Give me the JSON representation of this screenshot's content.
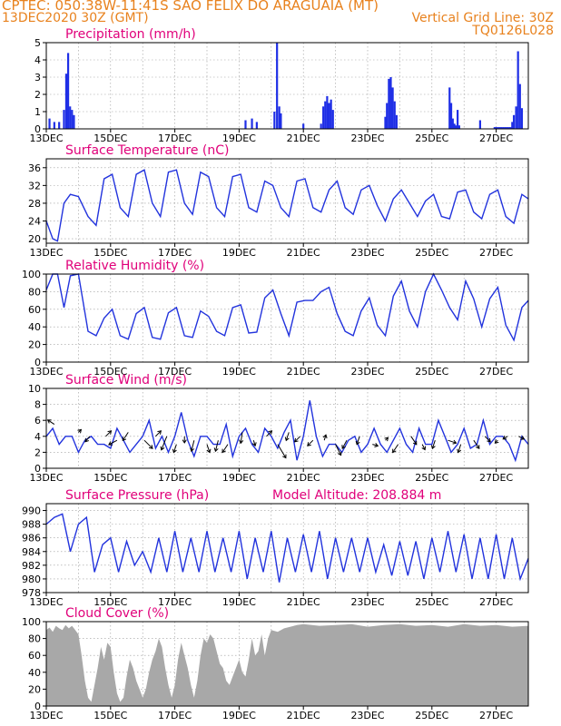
{
  "header": {
    "line1": "CPTEC:  050:38W-11:41S  SAO FELIX DO ARAGUAIA (MT)",
    "line2_left": "13DEC2020 30Z (GMT)",
    "line2_right": "Vertical Grid Line: 30Z",
    "line3_right": "TQ0126L028",
    "model_altitude": "Model Altitude: 208.884 m"
  },
  "colors": {
    "header": "#e8821e",
    "title": "#e0007a",
    "line": "#2233dd",
    "bar": "#1f2fe6",
    "cloud": "#a8a8a8",
    "arrow": "#000000",
    "grid": "#9a9a9a"
  },
  "chart_data": [
    {
      "type": "bar",
      "title": "Precipitation (mm/h)",
      "ylim": [
        0,
        5
      ],
      "yticks": [
        "0",
        "1",
        "2",
        "3",
        "4",
        "5"
      ],
      "xticks": [
        "13DEC",
        "15DEC",
        "17DEC",
        "19DEC",
        "21DEC",
        "23DEC",
        "25DEC",
        "27DEC"
      ],
      "x_unit": "day offset from 13DEC 00Z",
      "x": [
        0.1,
        0.25,
        0.4,
        0.55,
        0.62,
        0.68,
        0.74,
        0.8,
        0.86,
        6.2,
        6.4,
        6.55,
        7.1,
        7.18,
        7.25,
        7.3,
        8.0,
        8.55,
        8.62,
        8.68,
        8.74,
        8.8,
        8.86,
        8.92,
        10.55,
        10.6,
        10.66,
        10.72,
        10.78,
        10.84,
        10.9,
        12.55,
        12.6,
        12.65,
        12.7,
        12.75,
        12.8,
        12.85,
        13.5,
        13.95,
        14.0,
        14.05,
        14.1,
        14.15,
        14.2,
        14.25,
        14.3,
        14.35,
        14.4,
        14.45,
        14.5,
        14.55,
        14.62,
        14.68,
        14.74,
        14.8
      ],
      "values": [
        0.6,
        0.4,
        0.4,
        1.1,
        3.2,
        4.4,
        1.3,
        1.1,
        0.8,
        0.5,
        0.6,
        0.4,
        1.0,
        5.0,
        1.3,
        0.9,
        0.3,
        0.3,
        1.3,
        1.6,
        1.9,
        1.5,
        1.7,
        1.1,
        0.7,
        1.5,
        2.9,
        3.0,
        2.4,
        1.6,
        0.8,
        2.4,
        1.5,
        0.6,
        0.3,
        0.2,
        1.1,
        0.2,
        0.5,
        0.1,
        0.1,
        0.1,
        0.1,
        0.1,
        0.1,
        0.1,
        0.1,
        0.1,
        0.1,
        0.1,
        0.4,
        0.8,
        1.3,
        4.5,
        2.6,
        1.2
      ]
    },
    {
      "type": "line",
      "title": "Surface Temperature (nC)",
      "ylim": [
        19,
        38
      ],
      "yticks": [
        "20",
        "24",
        "28",
        "32",
        "36"
      ],
      "xticks": [
        "13DEC",
        "15DEC",
        "17DEC",
        "19DEC",
        "21DEC",
        "23DEC",
        "25DEC",
        "27DEC"
      ],
      "x_unit": "day offset from 13DEC 00Z",
      "x": [
        0,
        0.2,
        0.35,
        0.55,
        0.75,
        1.0,
        1.3,
        1.55,
        1.8,
        2.05,
        2.3,
        2.55,
        2.8,
        3.05,
        3.3,
        3.55,
        3.8,
        4.05,
        4.3,
        4.55,
        4.8,
        5.05,
        5.3,
        5.55,
        5.8,
        6.05,
        6.3,
        6.55,
        6.8,
        7.05,
        7.3,
        7.55,
        7.8,
        8.05,
        8.3,
        8.55,
        8.8,
        9.05,
        9.3,
        9.55,
        9.8,
        10.05,
        10.3,
        10.55,
        10.8,
        11.05,
        11.3,
        11.55,
        11.8,
        12.05,
        12.3,
        12.55,
        12.8,
        13.05,
        13.3,
        13.55,
        13.8,
        14.05,
        14.3,
        14.55,
        14.8,
        15.0
      ],
      "values": [
        24,
        20,
        19.5,
        28,
        30,
        29.5,
        25,
        23,
        33.5,
        34.5,
        27,
        25,
        34.5,
        35.5,
        28,
        25,
        35,
        35.5,
        28,
        25.5,
        35,
        34,
        27,
        25,
        34,
        34.5,
        27,
        26,
        33,
        32,
        27,
        25,
        33,
        33.5,
        27,
        26,
        31,
        33,
        27,
        25.5,
        31,
        32,
        27.5,
        24,
        29,
        31,
        28,
        25,
        28.5,
        30,
        25,
        24.5,
        30.5,
        31,
        26,
        24.5,
        30,
        31,
        25,
        23.5,
        30,
        29
      ]
    },
    {
      "type": "line",
      "title": "Relative Humidity (%)",
      "ylim": [
        0,
        100
      ],
      "yticks": [
        "0",
        "20",
        "40",
        "60",
        "80",
        "100"
      ],
      "xticks": [
        "13DEC",
        "15DEC",
        "17DEC",
        "19DEC",
        "21DEC",
        "23DEC",
        "25DEC",
        "27DEC"
      ],
      "x_unit": "day offset from 13DEC 00Z",
      "x": [
        0,
        0.2,
        0.35,
        0.55,
        0.75,
        1.0,
        1.3,
        1.55,
        1.8,
        2.05,
        2.3,
        2.55,
        2.8,
        3.05,
        3.3,
        3.55,
        3.8,
        4.05,
        4.3,
        4.55,
        4.8,
        5.05,
        5.3,
        5.55,
        5.8,
        6.05,
        6.3,
        6.55,
        6.8,
        7.05,
        7.3,
        7.55,
        7.8,
        8.05,
        8.3,
        8.55,
        8.8,
        9.05,
        9.3,
        9.55,
        9.8,
        10.05,
        10.3,
        10.55,
        10.8,
        11.05,
        11.3,
        11.55,
        11.8,
        12.05,
        12.3,
        12.55,
        12.8,
        13.05,
        13.3,
        13.55,
        13.8,
        14.05,
        14.3,
        14.55,
        14.8,
        15.0
      ],
      "values": [
        82,
        100,
        100,
        62,
        98,
        100,
        35,
        30,
        50,
        60,
        30,
        26,
        55,
        62,
        28,
        26,
        56,
        62,
        30,
        28,
        58,
        52,
        35,
        30,
        62,
        65,
        33,
        34,
        73,
        82,
        55,
        30,
        68,
        70,
        70,
        80,
        85,
        55,
        35,
        30,
        58,
        73,
        42,
        30,
        75,
        92,
        58,
        40,
        80,
        100,
        82,
        62,
        48,
        92,
        72,
        40,
        72,
        85,
        42,
        25,
        62,
        70
      ]
    },
    {
      "type": "line",
      "title": "Surface Wind (m/s)",
      "ylim": [
        0,
        10
      ],
      "yticks": [
        "0",
        "2",
        "4",
        "6",
        "8",
        "10"
      ],
      "xticks": [
        "13DEC",
        "15DEC",
        "17DEC",
        "19DEC",
        "21DEC",
        "23DEC",
        "25DEC",
        "27DEC"
      ],
      "x_unit": "day offset from 13DEC 00Z",
      "x": [
        0,
        0.2,
        0.4,
        0.6,
        0.8,
        1.0,
        1.2,
        1.4,
        1.6,
        1.8,
        2.0,
        2.2,
        2.4,
        2.6,
        2.8,
        3.0,
        3.2,
        3.4,
        3.6,
        3.8,
        4.0,
        4.2,
        4.4,
        4.6,
        4.8,
        5.0,
        5.2,
        5.4,
        5.6,
        5.8,
        6.0,
        6.2,
        6.4,
        6.6,
        6.8,
        7.0,
        7.2,
        7.4,
        7.6,
        7.8,
        8.0,
        8.2,
        8.4,
        8.6,
        8.8,
        9.0,
        9.2,
        9.4,
        9.6,
        9.8,
        10.0,
        10.2,
        10.4,
        10.6,
        10.8,
        11.0,
        11.2,
        11.4,
        11.6,
        11.8,
        12.0,
        12.2,
        12.4,
        12.6,
        12.8,
        13.0,
        13.2,
        13.4,
        13.6,
        13.8,
        14.0,
        14.2,
        14.4,
        14.6,
        14.8,
        15.0
      ],
      "values": [
        4,
        5,
        3,
        4,
        4,
        2,
        3.5,
        4,
        3,
        3,
        2.5,
        5,
        3.5,
        2,
        3,
        4,
        6,
        2.5,
        4,
        2,
        4,
        7,
        3.5,
        1.5,
        4,
        4,
        3,
        3,
        5.5,
        1.5,
        4,
        5,
        3,
        2,
        5,
        4,
        2.5,
        4.5,
        6,
        1,
        4,
        8.5,
        4,
        1.5,
        3,
        3,
        2,
        3.5,
        4,
        2,
        3,
        5,
        3,
        2,
        3.5,
        5,
        3,
        2,
        5,
        3,
        3,
        6,
        4,
        2,
        3,
        5,
        2.5,
        3,
        6,
        3,
        4,
        4,
        3,
        1,
        4,
        3
      ],
      "wind_vectors": {
        "x": [
          0.25,
          1.0,
          1.35,
          1.85,
          2.2,
          2.55,
          3.05,
          3.4,
          3.75,
          4.05,
          4.3,
          4.6,
          5.0,
          5.35,
          5.65,
          6.1,
          6.45,
          6.85,
          7.2,
          7.55,
          7.9,
          8.3,
          8.65,
          9.0,
          9.35,
          9.75,
          10.15,
          10.55,
          10.95,
          11.35,
          11.7,
          12.1,
          12.5,
          12.9,
          13.3,
          13.65,
          14.05,
          14.35,
          14.7
        ],
        "y": [
          5.5,
          4.5,
          4.0,
          4.0,
          3.5,
          4.5,
          3.5,
          4.0,
          4.0,
          3.0,
          4.0,
          3.5,
          3.0,
          3.5,
          3.0,
          4.5,
          3.5,
          4.0,
          3.0,
          4.5,
          4.0,
          3.5,
          3.5,
          3.0,
          3.5,
          4.0,
          3.0,
          3.5,
          3.0,
          4.0,
          3.0,
          3.5,
          3.5,
          3.0,
          3.5,
          4.0,
          3.5,
          4.0,
          4.0
        ],
        "u": [
          -1.2,
          0.5,
          -0.8,
          1.0,
          -1.5,
          -1.0,
          1.5,
          1.0,
          -1.0,
          -0.5,
          0,
          -0.5,
          0.5,
          -0.5,
          -1.0,
          -0.3,
          0.3,
          1.0,
          1.5,
          -0.5,
          -1.0,
          -1.0,
          0.3,
          1.0,
          -0.8,
          -0.5,
          1.0,
          0.5,
          -1.0,
          1.0,
          0.5,
          -0.5,
          1.5,
          -0.5,
          1.0,
          1.0,
          -0.5,
          -0.8,
          1.0
        ],
        "v": [
          0.8,
          0.5,
          -1.0,
          1.0,
          -0.8,
          -1.5,
          -1.5,
          1.0,
          -2.5,
          -1.5,
          -1.2,
          -2.0,
          -1.5,
          -2.0,
          -1.5,
          -2.0,
          -1.0,
          1.0,
          -2.5,
          -1.5,
          -1.0,
          -1.0,
          1.0,
          -2.0,
          -1.5,
          -1.5,
          -0.3,
          0.5,
          -1.5,
          -1.5,
          -1.0,
          -1.5,
          -0.5,
          -1.5,
          -1.5,
          -1.0,
          -0.5,
          -0.5,
          -0.5
        ]
      }
    },
    {
      "type": "line",
      "title": "Surface Pressure (hPa)",
      "ylim": [
        978,
        991
      ],
      "yticks": [
        "978",
        "980",
        "982",
        "984",
        "986",
        "988",
        "990"
      ],
      "xticks": [
        "13DEC",
        "15DEC",
        "17DEC",
        "19DEC",
        "21DEC",
        "23DEC",
        "25DEC",
        "27DEC"
      ],
      "x_unit": "day offset from 13DEC 00Z",
      "x": [
        0,
        0.25,
        0.5,
        0.75,
        1.0,
        1.25,
        1.5,
        1.75,
        2.0,
        2.25,
        2.5,
        2.75,
        3.0,
        3.25,
        3.5,
        3.75,
        4.0,
        4.25,
        4.5,
        4.75,
        5.0,
        5.25,
        5.5,
        5.75,
        6.0,
        6.25,
        6.5,
        6.75,
        7.0,
        7.25,
        7.5,
        7.75,
        8.0,
        8.25,
        8.5,
        8.75,
        9.0,
        9.25,
        9.5,
        9.75,
        10.0,
        10.25,
        10.5,
        10.75,
        11.0,
        11.25,
        11.5,
        11.75,
        12.0,
        12.25,
        12.5,
        12.75,
        13.0,
        13.25,
        13.5,
        13.75,
        14.0,
        14.25,
        14.5,
        14.75,
        15.0
      ],
      "values": [
        988,
        989,
        989.5,
        984,
        988,
        989,
        981,
        985,
        986,
        981,
        985.5,
        982,
        984,
        981,
        986,
        981,
        987,
        981,
        986,
        981,
        987,
        981,
        986,
        981,
        987,
        980,
        986,
        981,
        987,
        979.5,
        986,
        981,
        986.5,
        981,
        987,
        980,
        986,
        981,
        986,
        981,
        986,
        981,
        985,
        980.5,
        985.5,
        980.5,
        985.5,
        980,
        986,
        981,
        987,
        981,
        986.5,
        980,
        986,
        980,
        986.5,
        980,
        986,
        980,
        983
      ]
    },
    {
      "type": "area",
      "title": "Cloud Cover (%)",
      "ylim": [
        0,
        100
      ],
      "yticks": [
        "0",
        "20",
        "40",
        "60",
        "80",
        "100"
      ],
      "xticks": [
        "13DEC",
        "15DEC",
        "17DEC",
        "19DEC",
        "21DEC",
        "23DEC",
        "25DEC",
        "27DEC"
      ],
      "x_unit": "day offset from 13DEC 00Z",
      "x": [
        0,
        0.1,
        0.2,
        0.3,
        0.4,
        0.5,
        0.6,
        0.7,
        0.8,
        0.9,
        1.0,
        1.1,
        1.2,
        1.3,
        1.4,
        1.5,
        1.6,
        1.7,
        1.8,
        1.9,
        2.0,
        2.1,
        2.2,
        2.3,
        2.4,
        2.5,
        2.6,
        2.7,
        2.8,
        2.9,
        3.0,
        3.1,
        3.2,
        3.3,
        3.4,
        3.5,
        3.6,
        3.7,
        3.8,
        3.9,
        4.0,
        4.1,
        4.2,
        4.3,
        4.4,
        4.5,
        4.6,
        4.7,
        4.8,
        4.9,
        5.0,
        5.1,
        5.2,
        5.3,
        5.4,
        5.5,
        5.6,
        5.7,
        5.8,
        5.9,
        6.0,
        6.1,
        6.2,
        6.3,
        6.4,
        6.5,
        6.6,
        6.7,
        6.8,
        6.9,
        7.0,
        7.2,
        7.4,
        7.6,
        7.8,
        8.0,
        8.5,
        9.0,
        9.5,
        10.0,
        10.5,
        11.0,
        11.5,
        12.0,
        12.5,
        13.0,
        13.5,
        14.0,
        14.5,
        15.0
      ],
      "values": [
        90,
        93,
        88,
        95,
        92,
        90,
        96,
        92,
        95,
        90,
        85,
        60,
        30,
        10,
        5,
        25,
        45,
        70,
        55,
        75,
        70,
        40,
        15,
        5,
        10,
        35,
        55,
        45,
        30,
        20,
        10,
        20,
        40,
        55,
        65,
        80,
        70,
        45,
        25,
        10,
        25,
        55,
        75,
        60,
        45,
        25,
        10,
        30,
        60,
        80,
        75,
        85,
        80,
        65,
        50,
        45,
        30,
        25,
        35,
        45,
        55,
        40,
        35,
        55,
        80,
        60,
        65,
        85,
        60,
        80,
        90,
        88,
        92,
        94,
        96,
        97,
        95,
        96,
        97,
        94,
        96,
        97,
        95,
        96,
        94,
        97,
        95,
        96,
        94,
        95
      ]
    }
  ]
}
